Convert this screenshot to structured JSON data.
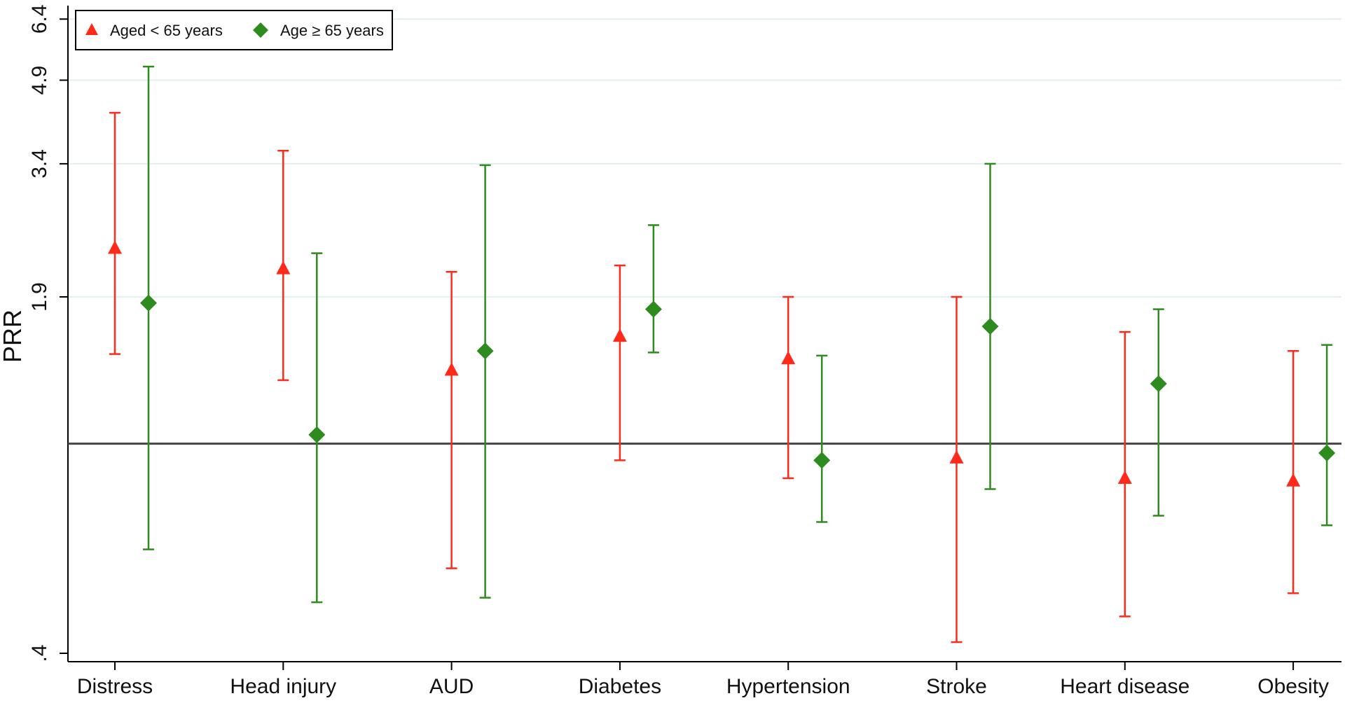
{
  "chart_data": {
    "type": "scatter",
    "subtype": "error-bar",
    "title": "",
    "xlabel": "",
    "ylabel": "PRR",
    "y_scale": "log",
    "ylim": [
      0.4,
      7.0
    ],
    "yticks": [
      0.4,
      1.9,
      3.4,
      4.9,
      6.4
    ],
    "ytick_labels": [
      ".4",
      "1.9",
      "3.4",
      "4.9",
      "6.4"
    ],
    "reference_line": 1.0,
    "grid": true,
    "legend_position": "top-left",
    "categories": [
      "Distress",
      "Head injury",
      "AUD",
      "Diabetes",
      "Hypertension",
      "Stroke",
      "Heart disease",
      "Obesity"
    ],
    "series": [
      {
        "name": "Aged < 65 years",
        "marker": "triangle",
        "color": "#ff2a1a",
        "estimate": [
          2.35,
          2.15,
          1.38,
          1.6,
          1.45,
          0.94,
          0.86,
          0.85
        ],
        "ci_low": [
          1.48,
          1.32,
          0.58,
          0.93,
          0.86,
          0.42,
          0.47,
          0.52
        ],
        "ci_high": [
          4.25,
          3.6,
          2.12,
          2.18,
          1.9,
          1.9,
          1.63,
          1.5
        ]
      },
      {
        "name": "Age ≥ 65 years",
        "marker": "diamond",
        "color": "#2e8b1e",
        "estimate": [
          1.85,
          1.04,
          1.5,
          1.8,
          0.93,
          1.67,
          1.3,
          0.96
        ],
        "ci_low": [
          0.63,
          0.5,
          0.51,
          1.49,
          0.71,
          0.82,
          0.73,
          0.7
        ],
        "ci_high": [
          5.2,
          2.3,
          3.38,
          2.6,
          1.47,
          3.4,
          1.8,
          1.54
        ]
      }
    ]
  }
}
